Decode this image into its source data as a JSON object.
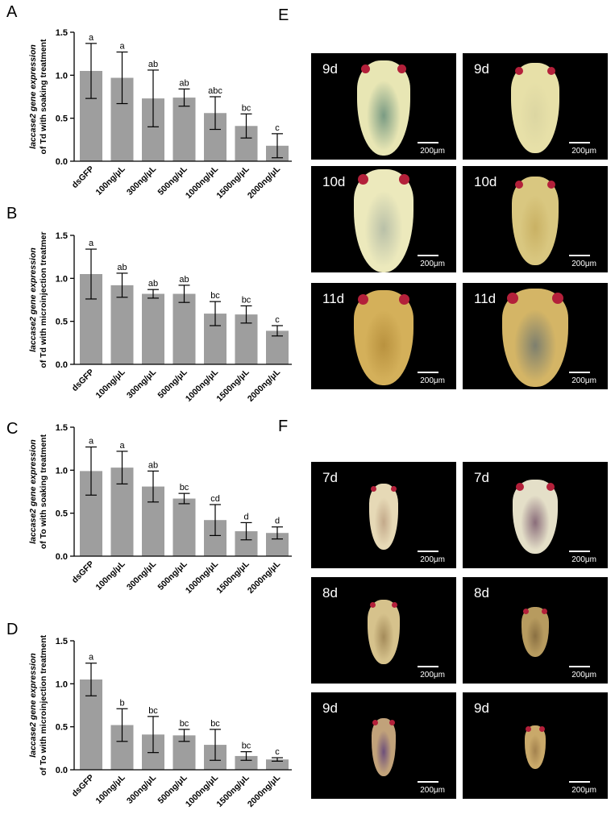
{
  "panels": {
    "A": "A",
    "B": "B",
    "C": "C",
    "D": "D",
    "E": "E",
    "F": "F"
  },
  "colors": {
    "bar": "#9e9e9e",
    "axis": "#000000",
    "photo_bg": "#000000",
    "eye": "#b3203a"
  },
  "chart_data": [
    {
      "type": "bar",
      "panel": "A",
      "ylabel_line1": "laccase2 gene expression",
      "ylabel_line2": "of Td with soaking treatment",
      "categories": [
        "dsGFP",
        "100ng/μL",
        "300ng/μL",
        "500ng/μL",
        "1000ng/μL",
        "1500ng/μL",
        "2000ng/μL"
      ],
      "values": [
        1.05,
        0.97,
        0.73,
        0.74,
        0.56,
        0.41,
        0.18
      ],
      "errors": [
        0.32,
        0.3,
        0.33,
        0.1,
        0.19,
        0.14,
        0.14
      ],
      "letters": [
        "a",
        "a",
        "ab",
        "ab",
        "abc",
        "bc",
        "c"
      ],
      "ylim": [
        0,
        1.5
      ],
      "yticks": [
        "0.0",
        "0.5",
        "1.0",
        "1.5"
      ]
    },
    {
      "type": "bar",
      "panel": "B",
      "ylabel_line1": "laccase2 gene expression",
      "ylabel_line2": "of Td with microinjection treatmer",
      "categories": [
        "dsGFP",
        "100ng/μL",
        "300ng/μL",
        "500ng/μL",
        "1000ng/μL",
        "1500ng/μL",
        "2000ng/μL"
      ],
      "values": [
        1.05,
        0.92,
        0.82,
        0.82,
        0.59,
        0.58,
        0.39
      ],
      "errors": [
        0.29,
        0.14,
        0.05,
        0.1,
        0.14,
        0.1,
        0.06
      ],
      "letters": [
        "a",
        "ab",
        "ab",
        "ab",
        "bc",
        "bc",
        "c"
      ],
      "ylim": [
        0,
        1.5
      ],
      "yticks": [
        "0.0",
        "0.5",
        "1.0",
        "1.5"
      ]
    },
    {
      "type": "bar",
      "panel": "C",
      "ylabel_line1": "laccase2 gene expression",
      "ylabel_line2": "of To with soaking treatment",
      "categories": [
        "dsGFP",
        "100ng/μL",
        "300ng/μL",
        "500ng/μL",
        "1000ng/μL",
        "1500ng/μL",
        "2000ng/μL"
      ],
      "values": [
        0.99,
        1.03,
        0.81,
        0.67,
        0.42,
        0.29,
        0.27
      ],
      "errors": [
        0.28,
        0.19,
        0.18,
        0.06,
        0.18,
        0.1,
        0.07
      ],
      "letters": [
        "a",
        "a",
        "ab",
        "bc",
        "cd",
        "d",
        "d"
      ],
      "ylim": [
        0,
        1.5
      ],
      "yticks": [
        "0.0",
        "0.5",
        "1.0",
        "1.5"
      ]
    },
    {
      "type": "bar",
      "panel": "D",
      "ylabel_line1": "laccase2 gene expression",
      "ylabel_line2": "of To with microinjection treatment",
      "categories": [
        "dsGFP",
        "100ng/μL",
        "300ng/μL",
        "500ng/μL",
        "1000ng/μL",
        "1500ng/μL",
        "2000ng/μL"
      ],
      "values": [
        1.05,
        0.52,
        0.41,
        0.4,
        0.29,
        0.16,
        0.12
      ],
      "errors": [
        0.19,
        0.19,
        0.21,
        0.07,
        0.18,
        0.05,
        0.02
      ],
      "letters": [
        "a",
        "b",
        "bc",
        "bc",
        "bc",
        "bc",
        "c"
      ],
      "ylim": [
        0,
        1.5
      ],
      "yticks": [
        "0.0",
        "0.5",
        "1.0",
        "1.5"
      ]
    }
  ],
  "photos_E": [
    {
      "day": "9d",
      "scale": "200μm",
      "tone": "pale-green"
    },
    {
      "day": "9d",
      "scale": "200μm",
      "tone": "pale"
    },
    {
      "day": "10d",
      "scale": "200μm",
      "tone": "pale-spot"
    },
    {
      "day": "10d",
      "scale": "200μm",
      "tone": "yellow"
    },
    {
      "day": "11d",
      "scale": "200μm",
      "tone": "amber"
    },
    {
      "day": "11d",
      "scale": "200μm",
      "tone": "amber-dark"
    }
  ],
  "photos_F": [
    {
      "day": "7d",
      "scale": "200μm",
      "tone": "pale-small"
    },
    {
      "day": "7d",
      "scale": "200μm",
      "tone": "pale-purple"
    },
    {
      "day": "8d",
      "scale": "200μm",
      "tone": "striped"
    },
    {
      "day": "8d",
      "scale": "200μm",
      "tone": "brown-small"
    },
    {
      "day": "9d",
      "scale": "200μm",
      "tone": "purple-small"
    },
    {
      "day": "9d",
      "scale": "200μm",
      "tone": "tiny"
    }
  ]
}
